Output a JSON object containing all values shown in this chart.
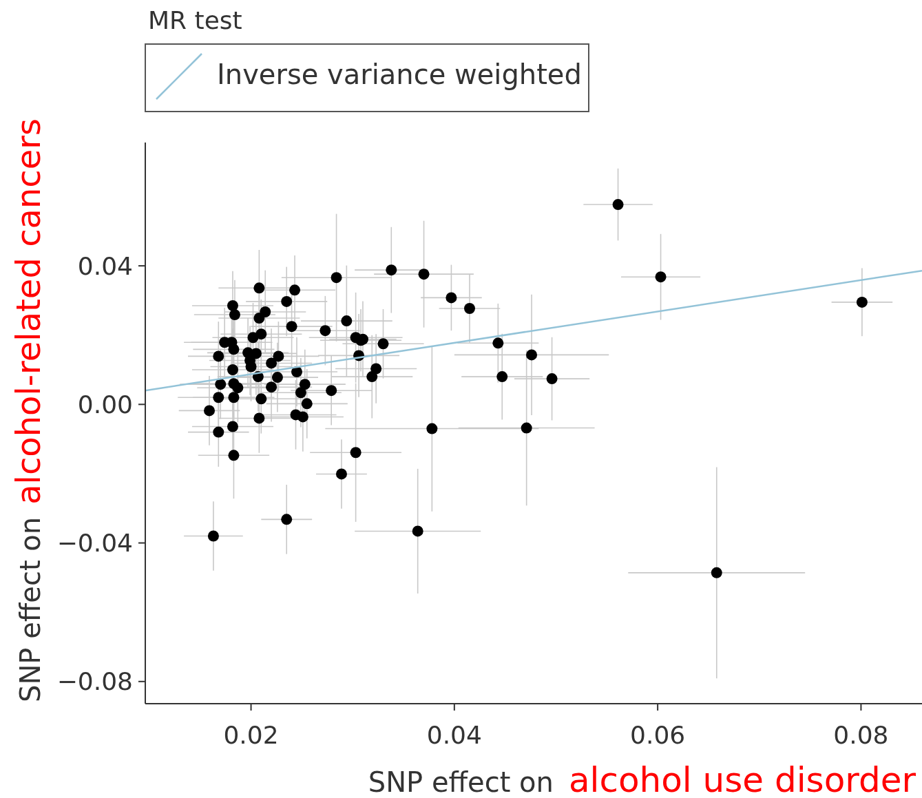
{
  "chart_data": {
    "type": "scatter",
    "legend_title": "MR test",
    "ylabel": "SNP effect on",
    "xlabel": "SNP effect on",
    "annotations": [
      "alcohol-related cancers",
      "alcohol use disorder"
    ],
    "xlim": [
      0.0096,
      0.086
    ],
    "ylim": [
      -0.0864,
      0.0756
    ],
    "xticks": [
      0.02,
      0.04,
      0.06,
      0.08
    ],
    "yticks": [
      {
        "value": -0.08,
        "label": "−0.08"
      },
      {
        "value": -0.04,
        "label": "−0.04"
      },
      {
        "value": 0,
        "label": "0.00"
      },
      {
        "value": 0.04,
        "label": "0.04"
      }
    ],
    "grid": false,
    "legend": "top left",
    "series": [
      {
        "marker": "circle",
        "color": "#000000",
        "x": [
          0.0561,
          0.0603,
          0.0801,
          0.0658,
          0.0364,
          0.0338,
          0.037,
          0.0397,
          0.0415,
          0.0443,
          0.0447,
          0.0476,
          0.0496,
          0.0471,
          0.0378,
          0.0284,
          0.0294,
          0.0273,
          0.0303,
          0.0308,
          0.031,
          0.0306,
          0.033,
          0.0323,
          0.0319,
          0.0279,
          0.0303,
          0.0289,
          0.0235,
          0.0163,
          0.0208,
          0.0243,
          0.0235,
          0.0182,
          0.0184,
          0.0214,
          0.0208,
          0.024,
          0.021,
          0.0202,
          0.0174,
          0.0181,
          0.0183,
          0.0197,
          0.0205,
          0.0168,
          0.0199,
          0.0227,
          0.022,
          0.02,
          0.0182,
          0.0245,
          0.0207,
          0.0226,
          0.017,
          0.0183,
          0.0187,
          0.022,
          0.0253,
          0.0168,
          0.0183,
          0.0249,
          0.021,
          0.0255,
          0.0159,
          0.0208,
          0.0244,
          0.0251,
          0.0182,
          0.0168,
          0.0183
        ],
        "values": [
          0.0577,
          0.0368,
          0.0295,
          -0.0486,
          -0.0366,
          0.0388,
          0.0376,
          0.0308,
          0.0277,
          0.0177,
          0.008,
          0.0143,
          0.0074,
          -0.0068,
          -0.007,
          0.0366,
          0.0241,
          0.0213,
          0.0193,
          0.0185,
          0.0188,
          0.0141,
          0.0175,
          0.0103,
          0.008,
          0.004,
          -0.0139,
          -0.0201,
          -0.0332,
          -0.038,
          0.0336,
          0.033,
          0.0297,
          0.0285,
          0.0259,
          0.0267,
          0.0249,
          0.0225,
          0.0203,
          0.0193,
          0.0179,
          0.0179,
          0.0159,
          0.0149,
          0.0147,
          0.0139,
          0.0127,
          0.0139,
          0.0119,
          0.0109,
          0.01,
          0.0094,
          0.008,
          0.0078,
          0.0058,
          0.006,
          0.0048,
          0.005,
          0.0058,
          0.002,
          0.002,
          0.0034,
          0.0016,
          0.0002,
          -0.0018,
          -0.004,
          -0.003,
          -0.0036,
          -0.0064,
          -0.008,
          -0.0147
        ],
        "errors": [
          0.0104,
          0.0124,
          0.0098,
          0.0305,
          0.018,
          0.0124,
          0.0154,
          0.0095,
          0.0099,
          0.0114,
          0.0124,
          0.0174,
          0.012,
          0.0224,
          0.0239,
          0.0184,
          0.016,
          0.01,
          0.013,
          0.009,
          0.011,
          0.012,
          0.01,
          0.01,
          0.012,
          0.01,
          0.02,
          0.01,
          0.01,
          0.01,
          0.011,
          0.01,
          0.01,
          0.01,
          0.01,
          0.012,
          0.01,
          0.012,
          0.01,
          0.01,
          0.01,
          0.01,
          0.01,
          0.01,
          0.012,
          0.01,
          0.01,
          0.01,
          0.01,
          0.01,
          0.012,
          0.01,
          0.01,
          0.01,
          0.01,
          0.01,
          0.01,
          0.01,
          0.01,
          0.01,
          0.01,
          0.01,
          0.01,
          0.01,
          0.01,
          0.01,
          0.01,
          0.01,
          0.01,
          0.01,
          0.0125
        ],
        "xerrors": [
          0.0034,
          0.0039,
          0.003,
          0.0087,
          0.0062,
          0.0036,
          0.0049,
          0.003,
          0.003,
          0.004,
          0.004,
          0.0076,
          0.0037,
          0.0067,
          0.0105,
          0.0054,
          0.0045,
          0.0034,
          0.0046,
          0.004,
          0.0033,
          0.004,
          0.004,
          0.004,
          0.004,
          0.004,
          0.0045,
          0.0025,
          0.0025,
          0.0029,
          0.004,
          0.004,
          0.004,
          0.004,
          0.004,
          0.004,
          0.004,
          0.004,
          0.004,
          0.004,
          0.004,
          0.004,
          0.004,
          0.004,
          0.004,
          0.003,
          0.004,
          0.004,
          0.004,
          0.004,
          0.004,
          0.004,
          0.004,
          0.004,
          0.004,
          0.004,
          0.004,
          0.004,
          0.004,
          0.004,
          0.004,
          0.004,
          0.004,
          0.004,
          0.003,
          0.004,
          0.004,
          0.004,
          0.004,
          0.003,
          0.0035
        ]
      },
      {
        "type": "line",
        "marker": "none",
        "name": "Inverse variance weighted",
        "color": "#93c3d8",
        "x": [
          0.0096,
          0.086
        ],
        "values": [
          0.004,
          0.0386
        ]
      }
    ]
  }
}
